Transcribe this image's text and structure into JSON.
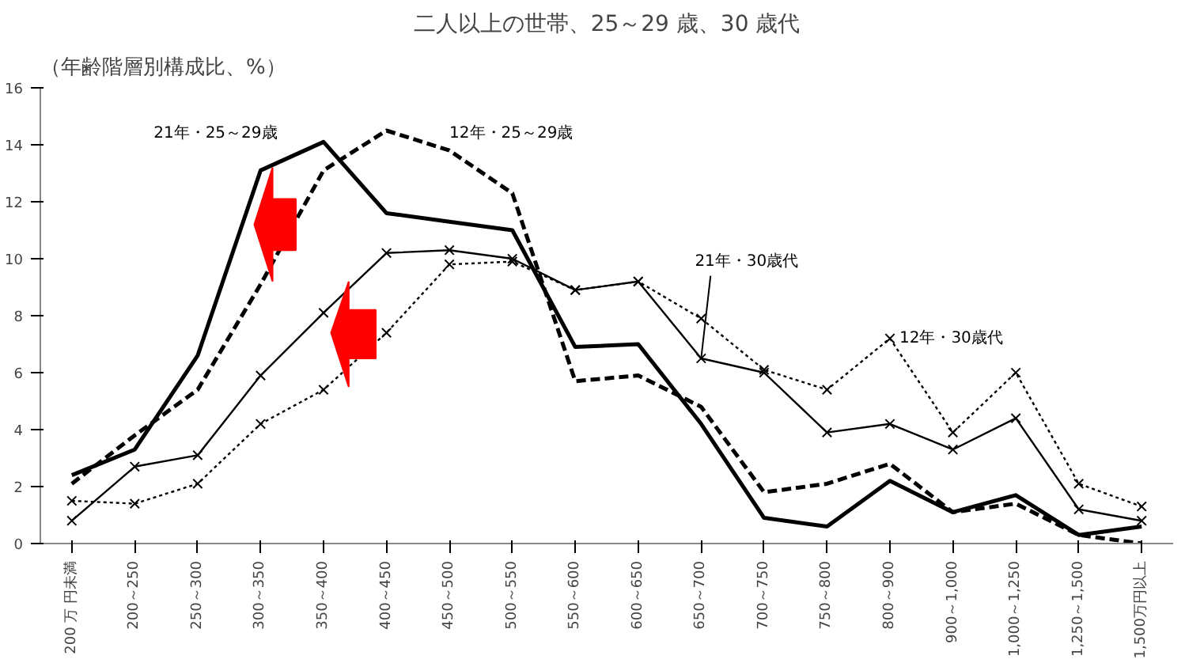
{
  "chart_data": {
    "type": "line",
    "title": "二人以上の世帯、25～29 歳、30 歳代",
    "ylabel": "（年齢階層別構成比、%）",
    "categories": [
      "200 万 円未満",
      "200～250",
      "250～300",
      "300～350",
      "350～400",
      "400～450",
      "450～500",
      "500～550",
      "550～600",
      "600～650",
      "650～700",
      "700～750",
      "750～800",
      "800～900",
      "900～1,000",
      "1,000～1,250",
      "1,250～1,500",
      "1,500万円以上"
    ],
    "series": [
      {
        "name": "21年・25～29歳",
        "color": "#000000",
        "line_style": "solid",
        "marker": "none",
        "values": [
          2.4,
          3.3,
          6.6,
          13.1,
          14.1,
          11.6,
          11.3,
          11.0,
          6.9,
          7.0,
          4.2,
          0.9,
          0.6,
          2.2,
          1.1,
          1.7,
          0.3,
          0.6
        ]
      },
      {
        "name": "12年・25～29歳",
        "color": "#000000",
        "line_style": "dashed",
        "marker": "none",
        "values": [
          2.1,
          3.8,
          5.4,
          9.1,
          13.1,
          14.5,
          13.8,
          12.3,
          5.7,
          5.9,
          4.8,
          1.8,
          2.1,
          2.8,
          1.1,
          1.4,
          0.3,
          0.0
        ]
      },
      {
        "name": "21年・30歳代",
        "color": "#000000",
        "line_style": "solid",
        "marker": "cross",
        "values": [
          0.8,
          2.7,
          3.1,
          5.9,
          8.1,
          10.2,
          10.3,
          10.0,
          8.9,
          9.2,
          6.5,
          6.0,
          3.9,
          4.2,
          3.3,
          4.4,
          1.2,
          0.8
        ]
      },
      {
        "name": "12年・30歳代",
        "color": "#000000",
        "line_style": "dotted",
        "marker": "cross",
        "values": [
          1.5,
          1.4,
          2.1,
          4.2,
          5.4,
          7.4,
          9.8,
          9.9,
          8.9,
          9.2,
          7.9,
          6.1,
          5.4,
          7.2,
          3.9,
          6.0,
          2.1,
          1.3
        ]
      }
    ],
    "ylim": [
      0,
      16
    ],
    "yticks": [
      0,
      2,
      4,
      6,
      8,
      10,
      12,
      14,
      16
    ],
    "grid": false
  }
}
